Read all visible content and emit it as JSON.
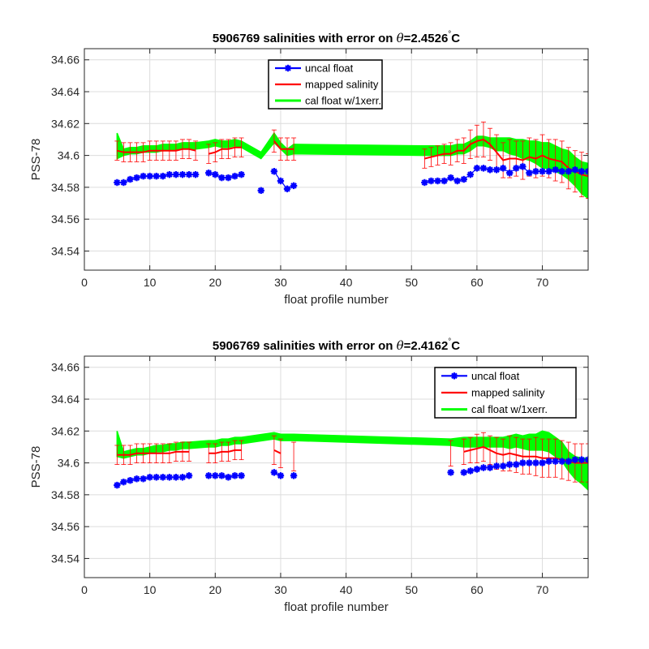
{
  "chart_data": [
    {
      "type": "line",
      "title": "5906769 salinities with error on θ=2.4526°C",
      "xlabel": "float profile number",
      "ylabel": "PSS-78",
      "xlim": [
        0,
        77
      ],
      "ylim": [
        34.528,
        34.667
      ],
      "xticks": [
        "0",
        "10",
        "20",
        "30",
        "40",
        "50",
        "60",
        "70"
      ],
      "yticks": [
        "34.54",
        "34.56",
        "34.58",
        "34.6",
        "34.62",
        "34.64",
        "34.66"
      ],
      "grid": true,
      "legend_position": "top-center",
      "series": [
        {
          "name": "uncal float",
          "color": "#0000ff",
          "marker": "asterisk",
          "x": [
            5,
            6,
            7,
            8,
            9,
            10,
            11,
            12,
            13,
            14,
            15,
            16,
            17,
            19,
            20,
            21,
            22,
            23,
            24,
            27,
            29,
            30,
            31,
            32,
            52,
            53,
            54,
            55,
            56,
            57,
            58,
            59,
            60,
            61,
            62,
            63,
            64,
            65,
            66,
            67,
            68,
            69,
            70,
            71,
            72,
            73,
            74,
            75,
            76,
            77
          ],
          "y": [
            34.583,
            34.583,
            34.585,
            34.586,
            34.587,
            34.587,
            34.587,
            34.587,
            34.588,
            34.588,
            34.588,
            34.588,
            34.588,
            34.589,
            34.588,
            34.586,
            34.586,
            34.587,
            34.588,
            34.578,
            34.59,
            34.584,
            34.579,
            34.581,
            34.583,
            34.584,
            34.584,
            34.584,
            34.586,
            34.584,
            34.585,
            34.588,
            34.592,
            34.592,
            34.591,
            34.591,
            34.592,
            34.589,
            34.592,
            34.593,
            34.589,
            34.59,
            34.59,
            34.59,
            34.591,
            34.59,
            34.59,
            34.591,
            34.59,
            34.59
          ]
        },
        {
          "name": "mapped salinity",
          "color": "#ff0000",
          "errorbars": true,
          "x": [
            5,
            6,
            7,
            8,
            9,
            10,
            11,
            12,
            13,
            14,
            15,
            16,
            17,
            19,
            20,
            21,
            22,
            23,
            24,
            29,
            30,
            31,
            32,
            52,
            53,
            54,
            55,
            56,
            57,
            58,
            59,
            60,
            61,
            62,
            63,
            64,
            65,
            66,
            67,
            68,
            69,
            70,
            71,
            72,
            73,
            74,
            75,
            76,
            77
          ],
          "y": [
            34.603,
            34.602,
            34.602,
            34.602,
            34.602,
            34.603,
            34.603,
            34.603,
            34.603,
            34.603,
            34.604,
            34.604,
            34.603,
            34.601,
            34.602,
            34.604,
            34.604,
            34.605,
            34.605,
            34.609,
            34.604,
            34.604,
            34.604,
            34.598,
            34.599,
            34.6,
            34.601,
            34.601,
            34.603,
            34.603,
            34.607,
            34.609,
            34.61,
            34.607,
            34.602,
            34.597,
            34.598,
            34.598,
            34.597,
            34.599,
            34.598,
            34.6,
            34.598,
            34.597,
            34.596,
            34.592,
            34.59,
            34.588,
            34.587
          ],
          "err": [
            0.006,
            0.006,
            0.006,
            0.006,
            0.006,
            0.006,
            0.006,
            0.006,
            0.006,
            0.006,
            0.006,
            0.006,
            0.006,
            0.006,
            0.006,
            0.006,
            0.006,
            0.006,
            0.006,
            0.007,
            0.007,
            0.007,
            0.007,
            0.006,
            0.006,
            0.006,
            0.006,
            0.007,
            0.007,
            0.008,
            0.009,
            0.01,
            0.011,
            0.01,
            0.011,
            0.011,
            0.012,
            0.011,
            0.012,
            0.012,
            0.012,
            0.013,
            0.012,
            0.013,
            0.013,
            0.013,
            0.013,
            0.014,
            0.014
          ]
        },
        {
          "name": "cal float w/1xerr.",
          "color": "#00ff00",
          "band": true,
          "x": [
            5,
            6,
            7,
            8,
            9,
            10,
            11,
            12,
            13,
            14,
            15,
            16,
            17,
            19,
            20,
            21,
            22,
            23,
            24,
            27,
            29,
            30,
            31,
            32,
            52,
            53,
            54,
            55,
            56,
            57,
            58,
            59,
            60,
            61,
            62,
            63,
            64,
            65,
            66,
            67,
            68,
            69,
            70,
            71,
            72,
            73,
            74,
            75,
            76,
            77
          ],
          "y": [
            34.606,
            34.602,
            34.603,
            34.603,
            34.604,
            34.604,
            34.604,
            34.605,
            34.605,
            34.605,
            34.606,
            34.606,
            34.606,
            34.607,
            34.608,
            34.607,
            34.607,
            34.608,
            34.607,
            34.6,
            34.611,
            34.606,
            34.602,
            34.604,
            34.603,
            34.603,
            34.603,
            34.603,
            34.603,
            34.604,
            34.604,
            34.606,
            34.609,
            34.609,
            34.608,
            34.607,
            34.607,
            34.606,
            34.605,
            34.604,
            34.603,
            34.602,
            34.6,
            34.6,
            34.598,
            34.596,
            34.594,
            34.59,
            34.586,
            34.584
          ],
          "err": [
            0.008,
            0.002,
            0.002,
            0.002,
            0.002,
            0.002,
            0.002,
            0.002,
            0.002,
            0.002,
            0.002,
            0.002,
            0.002,
            0.002,
            0.002,
            0.002,
            0.002,
            0.002,
            0.002,
            0.002,
            0.003,
            0.002,
            0.002,
            0.003,
            0.003,
            0.003,
            0.003,
            0.003,
            0.003,
            0.003,
            0.003,
            0.003,
            0.003,
            0.003,
            0.003,
            0.004,
            0.004,
            0.005,
            0.005,
            0.006,
            0.006,
            0.007,
            0.008,
            0.008,
            0.008,
            0.008,
            0.009,
            0.009,
            0.01,
            0.011
          ]
        }
      ]
    },
    {
      "type": "line",
      "title": "5906769 salinities with error on θ=2.4162°C",
      "xlabel": "float profile number",
      "ylabel": "PSS-78",
      "xlim": [
        0,
        77
      ],
      "ylim": [
        34.528,
        34.667
      ],
      "xticks": [
        "0",
        "10",
        "20",
        "30",
        "40",
        "50",
        "60",
        "70"
      ],
      "yticks": [
        "34.54",
        "34.56",
        "34.58",
        "34.6",
        "34.62",
        "34.64",
        "34.66"
      ],
      "grid": true,
      "legend_position": "top-right",
      "series": [
        {
          "name": "uncal float",
          "color": "#0000ff",
          "marker": "asterisk",
          "x": [
            5,
            6,
            7,
            8,
            9,
            10,
            11,
            12,
            13,
            14,
            15,
            16,
            19,
            20,
            21,
            22,
            23,
            24,
            29,
            30,
            32,
            56,
            58,
            59,
            60,
            61,
            62,
            63,
            64,
            65,
            66,
            67,
            68,
            69,
            70,
            71,
            72,
            73,
            74,
            75,
            76,
            77
          ],
          "y": [
            34.586,
            34.588,
            34.589,
            34.59,
            34.59,
            34.591,
            34.591,
            34.591,
            34.591,
            34.591,
            34.591,
            34.592,
            34.592,
            34.592,
            34.592,
            34.591,
            34.592,
            34.592,
            34.594,
            34.592,
            34.592,
            34.594,
            34.594,
            34.595,
            34.596,
            34.597,
            34.597,
            34.598,
            34.598,
            34.599,
            34.599,
            34.6,
            34.6,
            34.6,
            34.6,
            34.601,
            34.601,
            34.601,
            34.601,
            34.602,
            34.602,
            34.602
          ]
        },
        {
          "name": "mapped salinity",
          "color": "#ff0000",
          "errorbars": true,
          "x": [
            5,
            6,
            7,
            8,
            9,
            10,
            11,
            12,
            13,
            14,
            15,
            16,
            19,
            20,
            21,
            22,
            23,
            24,
            29,
            30,
            32,
            56,
            58,
            59,
            60,
            61,
            62,
            63,
            64,
            65,
            66,
            67,
            68,
            69,
            70,
            71,
            72,
            73,
            74,
            75,
            76,
            77
          ],
          "y": [
            34.605,
            34.605,
            34.605,
            34.606,
            34.606,
            34.606,
            34.606,
            34.606,
            34.606,
            34.607,
            34.607,
            34.607,
            34.606,
            34.606,
            34.607,
            34.607,
            34.608,
            34.608,
            34.608,
            34.606,
            34.604,
            34.606,
            34.607,
            34.608,
            34.609,
            34.61,
            34.608,
            34.606,
            34.605,
            34.606,
            34.605,
            34.604,
            34.604,
            34.604,
            34.603,
            34.603,
            34.603,
            34.602,
            34.601,
            34.6,
            34.6,
            34.6
          ],
          "err": [
            0.006,
            0.006,
            0.006,
            0.006,
            0.006,
            0.006,
            0.006,
            0.006,
            0.006,
            0.006,
            0.006,
            0.006,
            0.006,
            0.006,
            0.006,
            0.006,
            0.006,
            0.006,
            0.009,
            0.009,
            0.009,
            0.008,
            0.008,
            0.008,
            0.009,
            0.009,
            0.009,
            0.01,
            0.01,
            0.011,
            0.011,
            0.011,
            0.011,
            0.012,
            0.012,
            0.012,
            0.012,
            0.012,
            0.012,
            0.012,
            0.012,
            0.012
          ]
        },
        {
          "name": "cal float w/1xerr.",
          "color": "#00ff00",
          "band": true,
          "x": [
            5,
            6,
            7,
            8,
            9,
            10,
            11,
            12,
            13,
            14,
            15,
            16,
            19,
            20,
            21,
            22,
            23,
            24,
            29,
            30,
            32,
            56,
            58,
            59,
            60,
            61,
            62,
            63,
            64,
            65,
            66,
            67,
            68,
            69,
            70,
            71,
            72,
            73,
            74,
            75,
            76,
            77
          ],
          "y": [
            34.612,
            34.605,
            34.606,
            34.607,
            34.607,
            34.608,
            34.609,
            34.609,
            34.61,
            34.61,
            34.611,
            34.611,
            34.612,
            34.612,
            34.613,
            34.613,
            34.614,
            34.614,
            34.617,
            34.616,
            34.616,
            34.613,
            34.613,
            34.613,
            34.613,
            34.613,
            34.613,
            34.613,
            34.613,
            34.613,
            34.614,
            34.613,
            34.613,
            34.613,
            34.614,
            34.613,
            34.61,
            34.607,
            34.601,
            34.597,
            34.595,
            34.593
          ],
          "err": [
            0.008,
            0.002,
            0.002,
            0.002,
            0.002,
            0.002,
            0.002,
            0.002,
            0.002,
            0.002,
            0.002,
            0.002,
            0.002,
            0.002,
            0.002,
            0.002,
            0.002,
            0.002,
            0.002,
            0.002,
            0.002,
            0.002,
            0.003,
            0.003,
            0.003,
            0.003,
            0.003,
            0.003,
            0.003,
            0.004,
            0.004,
            0.004,
            0.005,
            0.005,
            0.006,
            0.006,
            0.006,
            0.006,
            0.006,
            0.007,
            0.008,
            0.01
          ]
        }
      ]
    }
  ]
}
